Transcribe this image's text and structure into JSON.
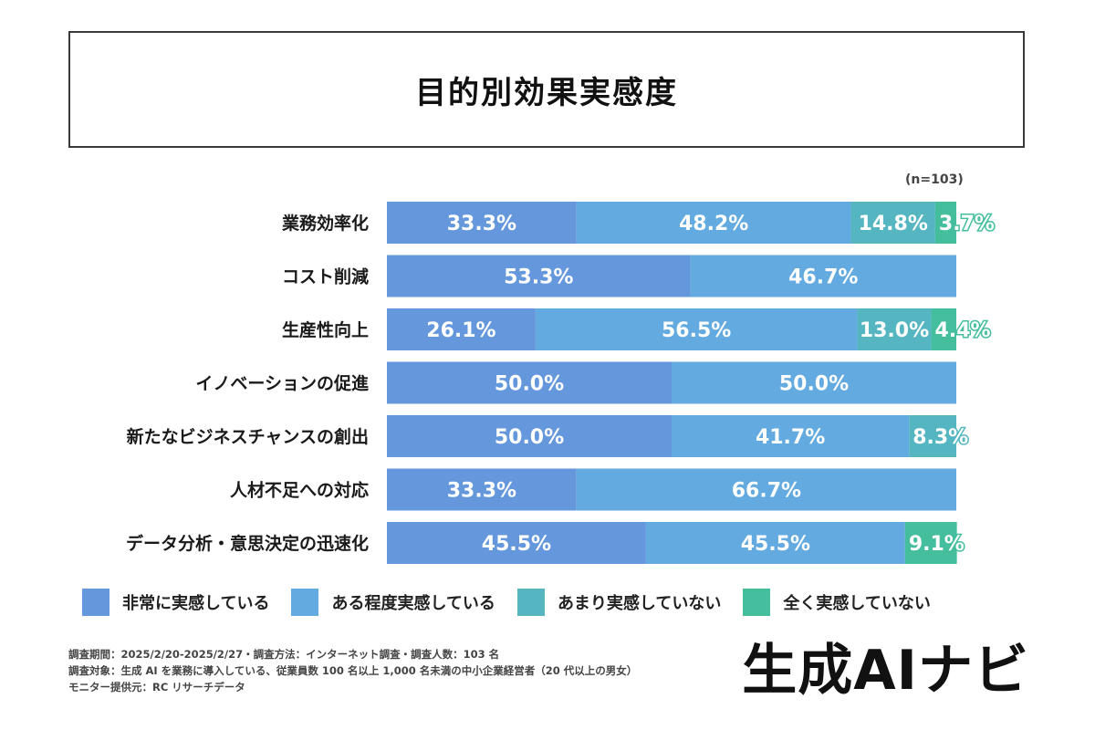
{
  "title": "目的別効果実感度",
  "sample_note": "(n=103)",
  "chart_data": {
    "type": "bar",
    "orientation": "horizontal",
    "stacked": true,
    "normalized": true,
    "title": "目的別効果実感度",
    "categories": [
      "業務効率化",
      "コスト削減",
      "生産性向上",
      "イノベーションの促進",
      "新たなビジネスチャンスの創出",
      "人材不足への対応",
      "データ分析・意思決定の迅速化"
    ],
    "series": [
      {
        "name": "非常に実感している",
        "color": "#6497DB",
        "values": [
          33.3,
          53.3,
          26.1,
          50.0,
          50.0,
          33.3,
          45.5
        ]
      },
      {
        "name": "ある程度実感している",
        "color": "#62AADF",
        "values": [
          48.2,
          46.7,
          56.5,
          50.0,
          41.7,
          66.7,
          45.5
        ]
      },
      {
        "name": "あまり実感していない",
        "color": "#55B6C2",
        "values": [
          14.8,
          0,
          13.0,
          0,
          8.3,
          0,
          0
        ]
      },
      {
        "name": "全く実感していない",
        "color": "#45BE9E",
        "values": [
          3.7,
          0,
          4.4,
          0,
          0,
          0,
          9.1
        ]
      }
    ],
    "value_format": "%",
    "xlim": [
      0,
      100
    ]
  },
  "footer": {
    "lines": [
      "調査期間：2025/2/20-2025/2/27・調査方法：インターネット調査・調査人数：103 名",
      "調査対象：生成 AI を業務に導入している、従業員数 100 名以上 1,000 名未満の中小企業経営者（20 代以上の男女）",
      "モニター提供元：RC リサーチデータ"
    ],
    "brand": "生成AIナビ"
  }
}
